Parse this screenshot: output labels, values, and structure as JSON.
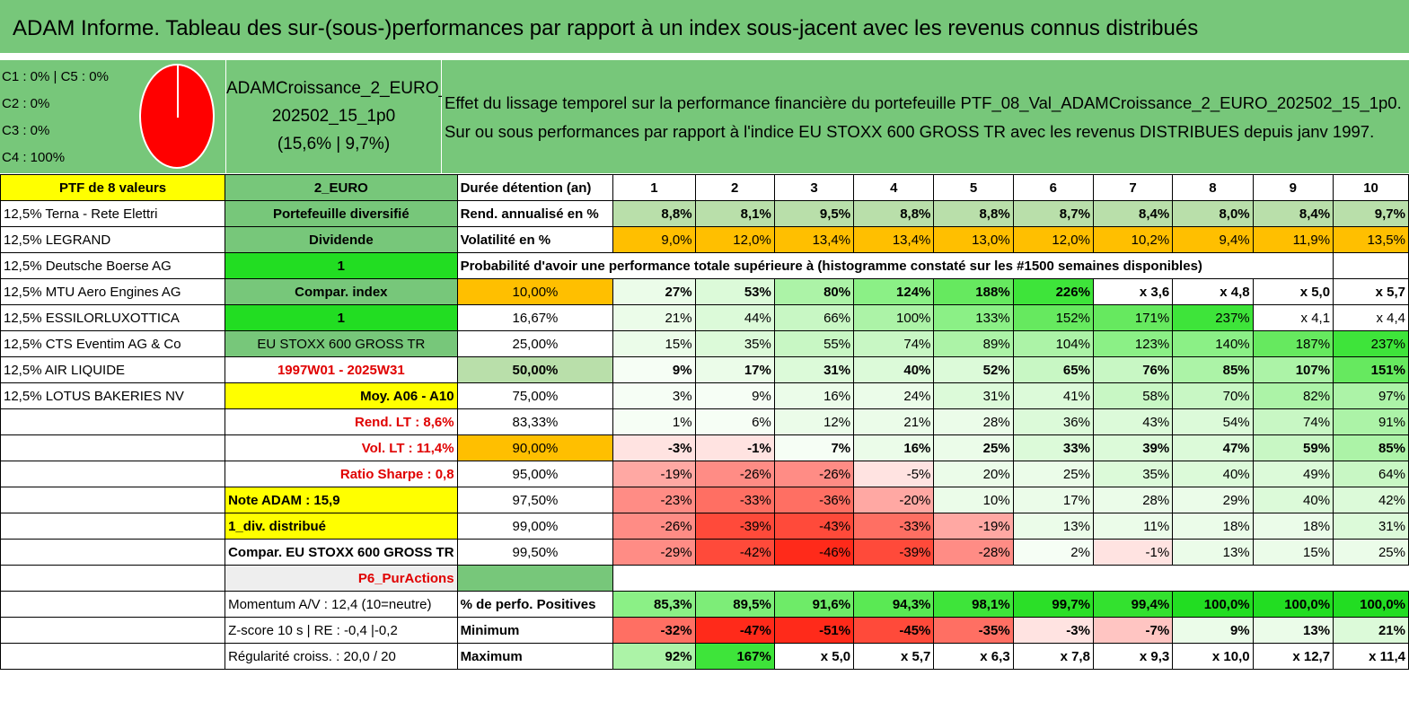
{
  "title": "ADAM Informe. Tableau des sur-(sous-)performances par rapport à un index sous-jacent avec les revenus connus distribués",
  "pie_legend": [
    "C1 : 0% | C5 : 0%",
    "C2 : 0%",
    "C3 : 0%",
    "C4 : 100%"
  ],
  "fund": {
    "line1": "ADAMCroissance_2_EURO_",
    "line2": "202502_15_1p0",
    "line3": "(15,6% | 9,7%)"
  },
  "description": {
    "line1": "Effet du lissage temporel sur la performance financière du portefeuille PTF_08_Val_ADAMCroissance_2_EURO_202502_15_1p0.",
    "line2": "Sur ou sous performances par rapport à l'indice EU STOXX 600 GROSS TR avec les revenus DISTRIBUES depuis janv 1997."
  },
  "col_a": [
    "PTF de 8 valeurs",
    "12,5% Terna - Rete Elettri",
    "12,5% LEGRAND",
    "12,5% Deutsche Boerse AG",
    "12,5% MTU Aero Engines AG",
    "12,5% ESSILORLUXOTTICA",
    "12,5% CTS Eventim AG & Co",
    "12,5% AIR LIQUIDE",
    "12,5% LOTUS BAKERIES NV",
    "",
    "",
    "",
    "",
    "",
    "",
    "",
    "",
    "",
    ""
  ],
  "col_b": [
    "2_EURO",
    "Portefeuille diversifié",
    "Dividende",
    "1",
    "Compar. index",
    "1",
    "EU STOXX 600 GROSS TR",
    "1997W01 - 2025W31",
    "Moy. A06 - A10",
    "Rend. LT : 8,6%",
    "Vol. LT : 11,4%",
    "Ratio Sharpe : 0,8",
    "Note ADAM : 15,9",
    "1_div. distribué",
    "Compar. EU STOXX 600 GROSS TR",
    "P6_PurActions",
    "Momentum A/V : 12,4 (10=neutre)",
    "Z-score 10 s | RE : -0,4 |-0,2",
    "Régularité croiss. : 20,0 / 20"
  ],
  "header_row": {
    "label": "Durée détention (an)",
    "years": [
      "1",
      "2",
      "3",
      "4",
      "5",
      "6",
      "7",
      "8",
      "9",
      "10"
    ]
  },
  "rend_row": {
    "label": "Rend. annualisé en %",
    "values": [
      "8,8%",
      "8,1%",
      "9,5%",
      "8,8%",
      "8,8%",
      "8,7%",
      "8,4%",
      "8,0%",
      "8,4%",
      "9,7%"
    ]
  },
  "vol_row": {
    "label": "Volatilité en %",
    "values": [
      "9,0%",
      "12,0%",
      "13,4%",
      "13,4%",
      "13,0%",
      "12,0%",
      "10,2%",
      "9,4%",
      "11,9%",
      "13,5%"
    ]
  },
  "prob_title": "Probabilité d'avoir une performance totale supérieure à (histogramme constaté sur les #1500 semaines disponibles)",
  "prob_rows": [
    {
      "p": "10,00%",
      "values": [
        "27%",
        "53%",
        "80%",
        "124%",
        "188%",
        "226%",
        "x 3,6",
        "x 4,8",
        "x 5,0",
        "x 5,7"
      ]
    },
    {
      "p": "16,67%",
      "values": [
        "21%",
        "44%",
        "66%",
        "100%",
        "133%",
        "152%",
        "171%",
        "237%",
        "x 4,1",
        "x 4,4"
      ]
    },
    {
      "p": "25,00%",
      "values": [
        "15%",
        "35%",
        "55%",
        "74%",
        "89%",
        "104%",
        "123%",
        "140%",
        "187%",
        "237%"
      ]
    },
    {
      "p": "50,00%",
      "values": [
        "9%",
        "17%",
        "31%",
        "40%",
        "52%",
        "65%",
        "76%",
        "85%",
        "107%",
        "151%"
      ]
    },
    {
      "p": "75,00%",
      "values": [
        "3%",
        "9%",
        "16%",
        "24%",
        "31%",
        "41%",
        "58%",
        "70%",
        "82%",
        "97%"
      ]
    },
    {
      "p": "83,33%",
      "values": [
        "1%",
        "6%",
        "12%",
        "21%",
        "28%",
        "36%",
        "43%",
        "54%",
        "74%",
        "91%"
      ]
    },
    {
      "p": "90,00%",
      "values": [
        "-3%",
        "-1%",
        "7%",
        "16%",
        "25%",
        "33%",
        "39%",
        "47%",
        "59%",
        "85%"
      ]
    },
    {
      "p": "95,00%",
      "values": [
        "-19%",
        "-26%",
        "-26%",
        "-5%",
        "20%",
        "25%",
        "35%",
        "40%",
        "49%",
        "64%"
      ]
    },
    {
      "p": "97,50%",
      "values": [
        "-23%",
        "-33%",
        "-36%",
        "-20%",
        "10%",
        "17%",
        "28%",
        "29%",
        "40%",
        "42%"
      ]
    },
    {
      "p": "99,00%",
      "values": [
        "-26%",
        "-39%",
        "-43%",
        "-33%",
        "-19%",
        "13%",
        "11%",
        "18%",
        "18%",
        "31%"
      ]
    },
    {
      "p": "99,50%",
      "values": [
        "-29%",
        "-42%",
        "-46%",
        "-39%",
        "-28%",
        "2%",
        "-1%",
        "13%",
        "15%",
        "25%"
      ]
    }
  ],
  "pos_row": {
    "label": "% de perfo. Positives",
    "values": [
      "85,3%",
      "89,5%",
      "91,6%",
      "94,3%",
      "98,1%",
      "99,7%",
      "99,4%",
      "100,0%",
      "100,0%",
      "100,0%"
    ]
  },
  "min_row": {
    "label": "Minimum",
    "values": [
      "-32%",
      "-47%",
      "-51%",
      "-45%",
      "-35%",
      "-3%",
      "-7%",
      "9%",
      "13%",
      "21%"
    ]
  },
  "max_row": {
    "label": "Maximum",
    "values": [
      "92%",
      "167%",
      "x 5,0",
      "x 5,7",
      "x 6,3",
      "x 7,8",
      "x 9,3",
      "x 10,0",
      "x 12,7",
      "x 11,4"
    ]
  },
  "colors": {
    "header_green": "#77c77a",
    "yellow": "#ffff00",
    "orange": "#ffbf00",
    "bright_green": "#22dd22",
    "red_text": "#e00000",
    "pie_red": "#ff0000"
  }
}
